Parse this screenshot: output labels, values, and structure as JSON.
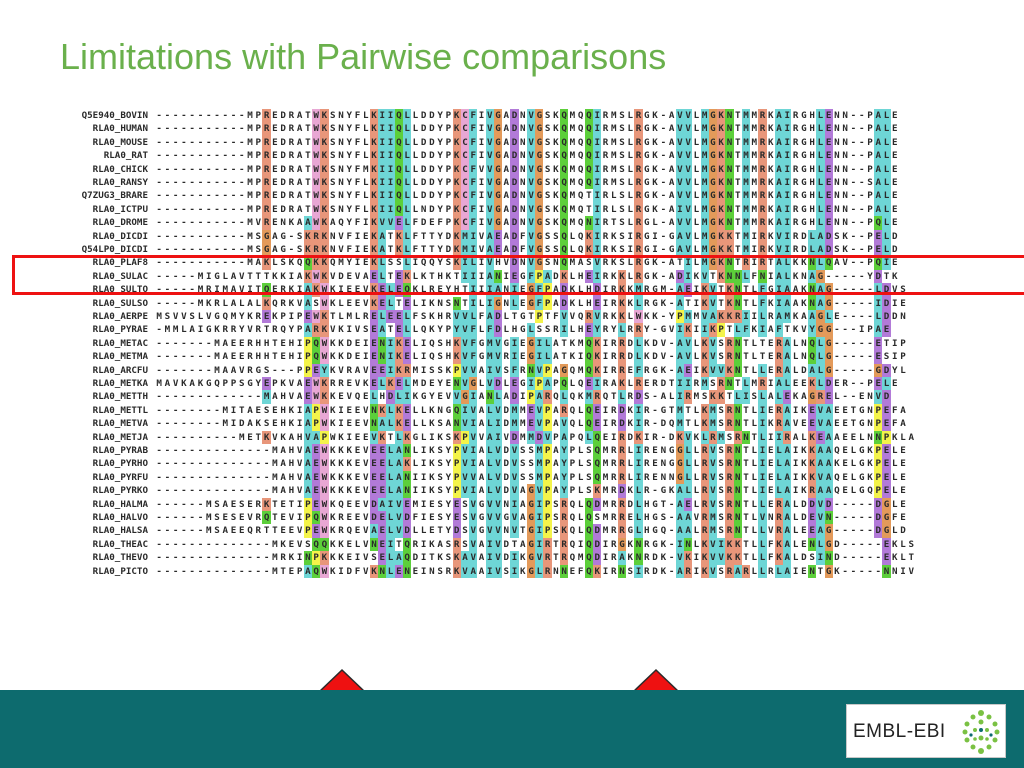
{
  "slide": {
    "title": "Limitations with Pairwise comparisons",
    "logo_text": "EMBL-EBI",
    "colors": {
      "title": "#6ab04c",
      "footer": "#0d6b6e",
      "highlight_box": "#ee1111",
      "arrow": "#ee1111"
    }
  },
  "alignment": {
    "rows": [
      {
        "name": "Q5E940_BOVIN",
        "seq": "-----------MPREDRATWKSNYFLKIIQLLDDYPKCFIVGADNVGSKQMQQIRMSLRGK-AVVLMGKNTMMRKAIRGHLENN--PALE"
      },
      {
        "name": "RLA0_HUMAN",
        "seq": "-----------MPREDRATWKSNYFLKIIQLLDDYPKCFIVGADNVGSKQMQQIRMSLRGK-AVVLMGKNTMMRKAIRGHLENN--PALE"
      },
      {
        "name": "RLA0_MOUSE",
        "seq": "-----------MPREDRATWKSNYFLKIIQLLDDYPKCFIVGADNVGSKQMQQIRMSLRGK-AVVLMGKNTMMRKAIRGHLENN--PALE"
      },
      {
        "name": "RLA0_RAT",
        "seq": "-----------MPREDRATWKSNYFLKIIQLLDDYPKCFIVGADNVGSKQMQQIRMSLRGK-AVVLMGKNTMMRKAIRGHLENN--PALE"
      },
      {
        "name": "RLA0_CHICK",
        "seq": "-----------MPREDRATWKSNYFMKIIQLLDDYPKCFVVGADNVGSKQMQQIRMSLRGK-AVVLMGKNTMMRKAIRGHLENN--PALE"
      },
      {
        "name": "RLA0_RANSY",
        "seq": "-----------MPREDRATWKSNYFLKIIQLLDDYPKCFIVGADNVGSKQMQQIRMSLRGK-AVVLMGKNTMMRKAIRGHLENN--SALE"
      },
      {
        "name": "Q7ZUG3_BRARE",
        "seq": "-----------MPREDRATWKSNYFLKIIQLLDDYPKCFIVGADNVGSKQMQTIRLSLRGK-AVVLMGKNTMMRKAIRGHLENN--PALE"
      },
      {
        "name": "RLA0_ICTPU",
        "seq": "-----------MPREDRATWKSNYFLKIIQLLNDYPKCFIVGADNVGSKQMQTIRLSLRGK-AIVLMGKNTMMRKAIRGHLENN--PALE"
      },
      {
        "name": "RLA0_DROME",
        "seq": "-----------MVRENKAAWKAQYFIKVVELFDEFPKCFIVGADNVGSKQMQNIRTSLRGL-AVVLMGKNTMMRKAIRGHLENN--PQLE"
      },
      {
        "name": "RLA0_DICDI",
        "seq": "-----------MSGAG-SKRKNVFIEKATKLFTTYDKMIVAEADFVGSSQLQKIRKSIRGI-GAVLMGKKTMIRKVIRDLADSK--PELD"
      },
      {
        "name": "Q54LP0_DICDI",
        "seq": "-----------MSGAG-SKRKNVFIEKATKLFTTYDKMIVAEADFVGSSQLQKIRKSIRGI-GAVLMGKKTMIRKVIRDLADSK--PELD"
      },
      {
        "name": "RLA0_PLAF8",
        "seq": "-----------MAKLSKQQKKQMYIEKLSSLIQQYSKILIVHVDNVGSNQMASVRKSLRGK-ATILMGKNTRIRTALKKNLQAV--PQIE"
      },
      {
        "name": "RLA0_SULAC",
        "seq": "-----MIGLAVTTTKKIAKWKVDEVAELTEKLKTHKTIIIANIEGFPADKLHEIRKKLRGK-ADIKVTKNNLFNIALKNAG-----YDTK"
      },
      {
        "name": "RLA0_SULTO",
        "seq": "-----MRIMAVITQERKIAKWKIEEVKELEQKLREYHTIIIANIEGFPADKLHDIRKKMRGM-AEIKVTKNTLFGIAAKNAG-----LDVS"
      },
      {
        "name": "RLA0_SULSO",
        "seq": "-----MKRLALALKQRKVASWKLEEVKELTELIKNSNTILIGNLEGFPADKLHEIRKKLRGK-ATIKVTKNTLFKIAAKNAG-----IDIE"
      },
      {
        "name": "RLA0_AERPE",
        "seq": "MSVVSLVGQMYKREKPIPEWKTLMLRELEELFSKHRVVLFADLTGTPTFVVQRVRKKLWKK-YPMMVAKKRIILRAMKAAGLE----LDDN"
      },
      {
        "name": "RLA0_PYRAE",
        "seq": "-MMLAIGKRRYVRTRQYPARKVKIVSEATELLQKYPYVFLFDLHGLSSRILHEYRYLRRY-GVIKIIKPTLFKIAFTKVYGG---IPAE"
      },
      {
        "name": "RLA0_METAC",
        "seq": "-------MAEERHHTEHIPQWKKDEIENIKELIQSHKVFGMVGIEGILATKMQKIRRDLKDV-AVLKVSRNTLTERALNQLG-----ETIP"
      },
      {
        "name": "RLA0_METMA",
        "seq": "-------MAEERHHTEHIPQWKKDEIENIKELIQSHKVFGMVRIEGILATKIQKIRRDLKDV-AVLKVSRNTLTERALNQLG-----ESIP"
      },
      {
        "name": "RLA0_ARCFU",
        "seq": "-------MAAVRGS---PPEYKVRAVEEIKRMISSKPVVAIVSFRNVPAGQMQKIRREFRGK-AEIKVVKNTLLERALDALG-----GDYL"
      },
      {
        "name": "RLA0_METKA",
        "seq": "MAVKAKGQPPSGYEPKVAEWKRREVKELKELMDEYENVGLVDLEGIPAPQLQEIRAKLRERDTIIRMSRNTLMRIALEEKLDER--PELE"
      },
      {
        "name": "RLA0_METTH",
        "seq": "-------------MAHVAEWKKEVQELHDLIKGYEVVGIANLADIPARQLQKMRQTLRDS-ALIRMSKKTLISLALEKAGREL--ENVD"
      },
      {
        "name": "RLA0_METTL",
        "seq": "--------MITAESEHKIAPWKIEEVNKLKELLKNGQIVALVDMMEVPARQLQEIRDKIR-GTMTLKMSRNTLIERAIKEVAEETGNPEFA"
      },
      {
        "name": "RLA0_METVA",
        "seq": "--------MIDAKSEHKIAPWKIEEVNALKELLKSANVIALIDMMEVPAVQLQEIRDKIR-DQMTLKMSRNTLIKRAVEEVAEETGNPEFA"
      },
      {
        "name": "RLA0_METJA",
        "seq": "----------METKVKAHVAPWKIEEVKTLKGLIKSKPVVAIVDMMDVPAPQLQEIRDKIR-DKVKLRMSRNTLIIRALKEAAEELNNPKLA"
      },
      {
        "name": "RLA0_PYRAB",
        "seq": "--------------MAHVAEWKKKEVEELANLIKSYPVIALVDVSSMPAYPLSQMRRLIRENGGLLRVSRNTLIELAIKKAAQELGKPELE"
      },
      {
        "name": "RLA0_PYRHO",
        "seq": "--------------MAHVAEWKKKEVEELAKLIKSYPVIALVDVSSMPAYPLSQMRRLIRENGGLLRVSRNTLIELAIKKAAKELGKPELE"
      },
      {
        "name": "RLA0_PYRFU",
        "seq": "--------------MAHVAEWKKKEVEELANIIKSYPVVALVDVSSMPAYPLSQMRRLIRENNGLLRVSRNTLIELAIKKVAQELGKPELE"
      },
      {
        "name": "RLA0_PYRKO",
        "seq": "--------------MAHVAEWKKKEVEELANIIKSYPVIALVDVAGVPAYPLSKMRDKLR-GKALLRVSRNTLIELAIKRAAQELGQPELE"
      },
      {
        "name": "RLA0_HALMA",
        "seq": "------MSAESERKTETIPEWKQEEVDAIVEMIESYESVGVVNIAGIPSRQLQDMRRDLHGT-AELRVSRNTLLERALDDVD-----DGLE"
      },
      {
        "name": "RLA0_HALVO",
        "seq": "------MSESEVRQTEVIPQWKREEVDELVDFIESYESVGVVGVAGIPSRQLQSMRRELHGS-AAVRMSRNTLVNRALDEVN-----DGFE"
      },
      {
        "name": "RLA0_HALSA",
        "seq": "------MSAEEQRTTEEVPEWKRQEVAELVDLLETYDSVGVVNVTGIPSKQLQDMRRGLHGQ-AALRMSRNTLLVRALEEAG-----DGLD"
      },
      {
        "name": "RLA0_THEAC",
        "seq": "--------------MKEVSQQKKELVNEITQRIKASRSVAIVDTAGIRTRQIQDIRGKNRGK-INLKVIKKTLLFKALENLGD-----EKLS"
      },
      {
        "name": "RLA0_THEVO",
        "seq": "--------------MRKINPKKKEIVSELAQDITKSKAVAIVDIKGVRTRQMQDIRAKNRDK-VKIKVVKKTLLFKALDSIND-----EKLT"
      },
      {
        "name": "RLA0_PICTO",
        "seq": "--------------MTEPAQWKIDFVKNLENEINSRKVAAIVSIKGLRNNEFQKIRNSIRDK-ARIKVSRARLLRLAIENTGK-----NNIV"
      }
    ]
  }
}
